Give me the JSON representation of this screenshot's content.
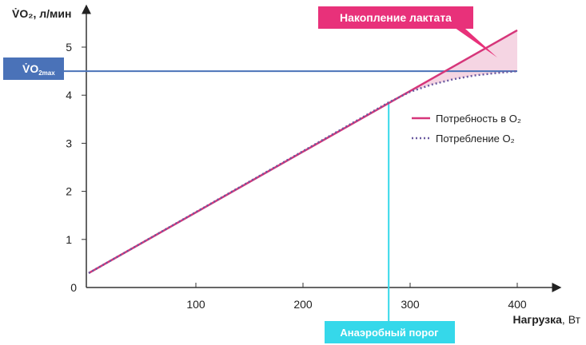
{
  "chart_data": {
    "type": "line",
    "ylabel": "V̇O₂, л/мин",
    "xlabel": "Нагрузка, Вт",
    "xlabel_bold": "Нагрузка",
    "xlabel_unit": ", Вт",
    "xlim": [
      0,
      400
    ],
    "ylim": [
      0,
      5
    ],
    "x_ticks": [
      "100",
      "200",
      "300",
      "400"
    ],
    "x_tick_values": [
      100,
      200,
      300,
      400
    ],
    "y_ticks": [
      "0",
      "1",
      "2",
      "3",
      "4",
      "5"
    ],
    "y_tick_values": [
      0,
      1,
      2,
      3,
      4,
      5
    ],
    "grid": false,
    "legend_position": "right",
    "series": [
      {
        "name": "Потребность в O₂",
        "style": "solid",
        "color": "#d6367a",
        "x": [
          0,
          400
        ],
        "y": [
          0.3,
          5.35
        ]
      },
      {
        "name": "Потребление O₂",
        "style": "dotted",
        "color": "#6a5aa0",
        "x": [
          0,
          280,
          300,
          320,
          340,
          360,
          380,
          400
        ],
        "y": [
          0.3,
          3.85,
          4.07,
          4.22,
          4.33,
          4.41,
          4.46,
          4.5
        ]
      }
    ],
    "reference_line": {
      "label": "V̇O",
      "label_sub": "2max",
      "y": 4.5,
      "color": "#4a72b8"
    },
    "threshold": {
      "label": "Анаэробный порог",
      "x": 280,
      "color": "#35d8ea"
    },
    "annotation": {
      "label": "Накопление лактата",
      "color": "#e8317a",
      "fill": "#f5d5e3"
    }
  }
}
